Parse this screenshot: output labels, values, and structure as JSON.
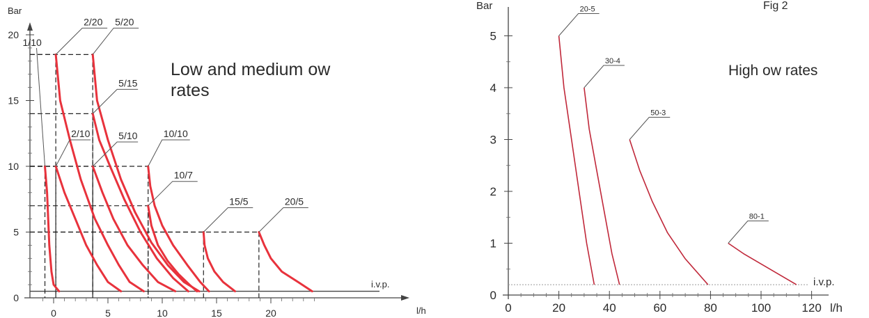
{
  "chart_data": [
    {
      "type": "line",
      "title": "Low and medium  ow rates",
      "ylabel": "Bar",
      "xlabel": "l/h",
      "ylim": [
        0,
        20
      ],
      "xlim": [
        -2,
        27
      ],
      "yticks": [
        "0",
        "5",
        "10",
        "15",
        "20"
      ],
      "xticks": [
        "0",
        "5",
        "10",
        "15",
        "20"
      ],
      "baseline_label": "i.v.p.",
      "series": [
        {
          "name": "1/10",
          "x": [
            -0.8,
            -0.6,
            -0.5,
            -0.4,
            -0.2,
            0.0,
            0.5
          ],
          "y": [
            10,
            8,
            6,
            4,
            2,
            1,
            0.5
          ]
        },
        {
          "name": "2/10",
          "x": [
            0.2,
            1.0,
            2.0,
            3.0,
            4.0,
            5.0,
            6.2
          ],
          "y": [
            10,
            8,
            6,
            4,
            2.5,
            1.2,
            0.5
          ]
        },
        {
          "name": "2/20",
          "x": [
            0.2,
            0.6,
            1.5,
            2.5,
            3.8,
            5.0,
            6.0,
            7.0,
            8.3
          ],
          "y": [
            18.5,
            15,
            12,
            9,
            6,
            4,
            2.5,
            1.2,
            0.5
          ]
        },
        {
          "name": "5/20",
          "x": [
            3.6,
            4.0,
            5.0,
            6.2,
            7.5,
            9.0,
            10.5,
            12.0,
            13.4
          ],
          "y": [
            18.5,
            15,
            12,
            9,
            6.5,
            4.2,
            2.5,
            1.2,
            0.5
          ]
        },
        {
          "name": "5/15",
          "x": [
            3.6,
            4.2,
            5.2,
            6.5,
            8.0,
            9.5,
            11.0,
            12.4
          ],
          "y": [
            14,
            12,
            10,
            7.5,
            5,
            3,
            1.5,
            0.5
          ]
        },
        {
          "name": "5/10",
          "x": [
            3.6,
            4.5,
            5.5,
            6.8,
            8.2,
            9.6,
            11.2
          ],
          "y": [
            10,
            8,
            6,
            4,
            2.5,
            1.2,
            0.5
          ]
        },
        {
          "name": "10/10",
          "x": [
            8.7,
            8.9,
            9.3,
            10.0,
            11.0,
            12.3,
            13.5,
            14.3
          ],
          "y": [
            10,
            8.5,
            7,
            5.5,
            4,
            2.5,
            1.2,
            0.5
          ]
        },
        {
          "name": "10/7",
          "x": [
            8.7,
            9.0,
            9.6,
            10.5,
            11.5,
            12.5,
            13.2
          ],
          "y": [
            7,
            5.5,
            4,
            2.8,
            1.8,
            1,
            0.5
          ]
        },
        {
          "name": "15/5",
          "x": [
            13.8,
            13.9,
            14.2,
            14.8,
            15.6,
            16.7
          ],
          "y": [
            5,
            4,
            3,
            2,
            1.2,
            0.5
          ]
        },
        {
          "name": "20/5",
          "x": [
            18.9,
            19.4,
            20.0,
            21.0,
            22.5,
            23.8
          ],
          "y": [
            5,
            4,
            3,
            2,
            1.2,
            0.5
          ]
        }
      ]
    },
    {
      "type": "line",
      "title": "High  ow rates",
      "fig_label": "Fig 2",
      "ylabel": "Bar",
      "xlabel": "l/h",
      "ylim": [
        0,
        5.5
      ],
      "xlim": [
        0,
        125
      ],
      "yticks": [
        "0",
        "1",
        "2",
        "3",
        "4",
        "5"
      ],
      "xticks": [
        "0",
        "20",
        "40",
        "60",
        "80",
        "100",
        "120"
      ],
      "baseline_label": "i.v.p.",
      "series": [
        {
          "name": "20-5",
          "x": [
            20,
            22,
            25,
            28,
            31,
            34
          ],
          "y": [
            5.0,
            4.0,
            3.0,
            2.0,
            1.0,
            0.2
          ]
        },
        {
          "name": "30-4",
          "x": [
            30,
            32,
            35,
            38,
            41,
            44
          ],
          "y": [
            4.0,
            3.2,
            2.4,
            1.6,
            0.8,
            0.2
          ]
        },
        {
          "name": "50-3",
          "x": [
            48,
            52,
            57,
            63,
            70,
            79
          ],
          "y": [
            3.0,
            2.4,
            1.8,
            1.2,
            0.7,
            0.2
          ]
        },
        {
          "name": "80-1",
          "x": [
            87,
            93,
            100,
            107,
            114
          ],
          "y": [
            1.0,
            0.8,
            0.6,
            0.4,
            0.2
          ]
        }
      ]
    }
  ],
  "colors": {
    "curve_left": "#e8323c",
    "curve_right": "#c0283a"
  }
}
